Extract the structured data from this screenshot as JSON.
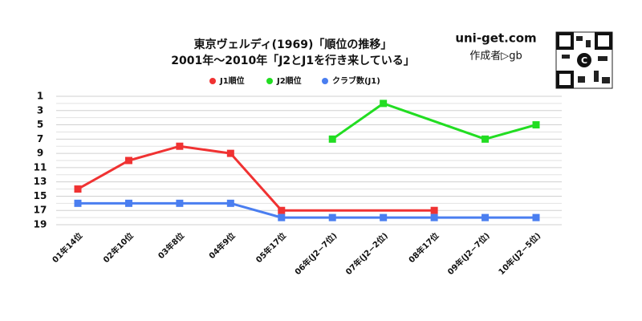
{
  "chart_data": {
    "type": "line",
    "title": "東京ヴェルディ(1969)「順位の推移」",
    "subtitle": "2001年〜2010年「J2とJ1を行き来している」",
    "site": "uni-get.com",
    "author": "作成者▷gb",
    "categories": [
      "01年14位",
      "02年10位",
      "03年8位",
      "04年9位",
      "05年17位",
      "06年(J2−7位)",
      "07年(J2−2位)",
      "08年17位",
      "09年(J2−7位)",
      "10年(J2−5位)"
    ],
    "series": [
      {
        "name": "J1順位",
        "color": "#f03232",
        "values": [
          14,
          10,
          8,
          9,
          17,
          null,
          null,
          17,
          null,
          null
        ]
      },
      {
        "name": "J2順位",
        "color": "#22dd22",
        "values": [
          null,
          null,
          null,
          null,
          null,
          7,
          2,
          null,
          7,
          5
        ]
      },
      {
        "name": "クラブ数(J1)",
        "color": "#4a7ef0",
        "values": [
          16,
          16,
          16,
          16,
          18,
          18,
          18,
          18,
          18,
          18
        ]
      }
    ],
    "ylim": [
      1,
      19
    ],
    "y_inverted": true,
    "yticks": [
      1,
      3,
      5,
      7,
      9,
      11,
      13,
      15,
      17,
      19
    ],
    "minor_yticks": [
      2,
      4,
      6,
      8,
      10,
      12,
      14,
      16,
      18
    ],
    "grid": true,
    "connect_gaps": true,
    "legend": "top"
  }
}
